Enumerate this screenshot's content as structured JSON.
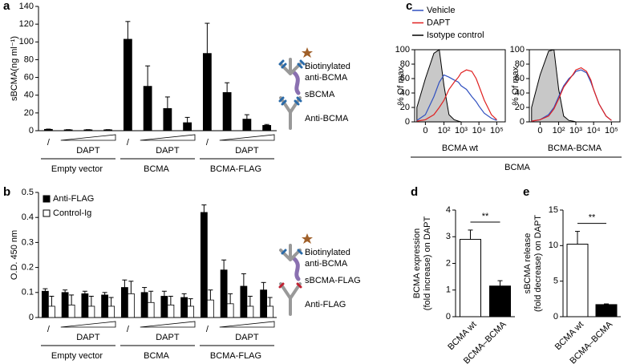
{
  "chart_data": [
    {
      "type": "bar",
      "panel_label": "a",
      "y_label": "sBCMA(ng ml⁻¹)",
      "ylim": [
        0,
        140
      ],
      "yticks": [
        0,
        20,
        40,
        60,
        80,
        100,
        120,
        140
      ],
      "groups": [
        {
          "name": "Empty vector",
          "control": "/",
          "treatment": "DAPT"
        },
        {
          "name": "BCMA",
          "control": "/",
          "treatment": "DAPT"
        },
        {
          "name": "BCMA-FLAG",
          "control": "/",
          "treatment": "DAPT"
        }
      ],
      "series": [
        {
          "color": "#000000",
          "values": [
            1.5,
            1,
            1,
            1,
            103,
            50,
            25,
            9,
            87,
            43,
            13,
            6
          ],
          "errors": [
            0.3,
            0.2,
            0.2,
            0.2,
            20,
            23,
            13,
            6,
            34,
            11,
            5,
            1
          ]
        }
      ]
    },
    {
      "type": "bar",
      "panel_label": "b",
      "y_label": "O.D. 450 nm",
      "legend": "upper left",
      "ylim": [
        0,
        0.5
      ],
      "yticks": [
        0,
        0.1,
        0.2,
        0.3,
        0.4,
        0.5
      ],
      "groups": [
        {
          "name": "Empty vector",
          "control": "/",
          "treatment": "DAPT"
        },
        {
          "name": "BCMA",
          "control": "/",
          "treatment": "DAPT"
        },
        {
          "name": "BCMA-FLAG",
          "control": "/",
          "treatment": "DAPT"
        }
      ],
      "series": [
        {
          "name": "Anti-FLAG",
          "color": "#000000",
          "values": [
            0.105,
            0.1,
            0.095,
            0.09,
            0.12,
            0.1,
            0.085,
            0.08,
            0.42,
            0.19,
            0.125,
            0.11
          ],
          "errors": [
            0.01,
            0.01,
            0.01,
            0.01,
            0.03,
            0.02,
            0.02,
            0.015,
            0.03,
            0.04,
            0.05,
            0.03
          ]
        },
        {
          "name": "Control-Ig",
          "color": "#ffffff",
          "values": [
            0.045,
            0.05,
            0.045,
            0.045,
            0.095,
            0.06,
            0.05,
            0.045,
            0.07,
            0.055,
            0.045,
            0.045
          ],
          "errors": [
            0.04,
            0.04,
            0.04,
            0.035,
            0.05,
            0.045,
            0.035,
            0.03,
            0.04,
            0.04,
            0.04,
            0.035
          ]
        }
      ]
    },
    {
      "type": "line",
      "panel_label": "c",
      "y_label": "% Of max",
      "x_label": "BCMA",
      "xscale": "symlog",
      "xlim": [
        -30,
        300000
      ],
      "xticks": [
        0,
        {
          "value": 100,
          "label": "10²"
        },
        {
          "value": 1000,
          "label": "10³"
        },
        {
          "value": 10000,
          "label": "10⁴"
        },
        {
          "value": 100000,
          "label": "10⁵"
        }
      ],
      "ylim": [
        0,
        100
      ],
      "yticks": [
        0,
        20,
        40,
        60,
        80,
        100
      ],
      "series": [
        {
          "name": "Vehicle",
          "color": "#3050c0"
        },
        {
          "name": "DAPT",
          "color": "#e02020"
        },
        {
          "name": "Isotype control",
          "color": "#000000",
          "fill": "#c8c8c8"
        }
      ],
      "x": [
        -20,
        0,
        20,
        50,
        100,
        200,
        400,
        700,
        1000,
        2000,
        4000,
        7000,
        10000,
        20000,
        50000,
        100000
      ],
      "subplots": [
        {
          "label": "BCMA wt",
          "series_values": [
            [
              2,
              10,
              35,
              55,
              65,
              62,
              58,
              55,
              50,
              45,
              35,
              28,
              22,
              12,
              5,
              2
            ],
            [
              1,
              3,
              10,
              20,
              30,
              45,
              55,
              62,
              68,
              72,
              70,
              60,
              50,
              30,
              10,
              3
            ],
            [
              20,
              60,
              95,
              100,
              50,
              10,
              3,
              1,
              0,
              0,
              0,
              0,
              0,
              0,
              0,
              0
            ]
          ]
        },
        {
          "label": "BCMA-BCMA",
          "series_values": [
            [
              1,
              3,
              10,
              20,
              35,
              50,
              60,
              65,
              70,
              72,
              68,
              55,
              45,
              25,
              8,
              2
            ],
            [
              1,
              3,
              8,
              18,
              32,
              48,
              58,
              66,
              72,
              75,
              70,
              58,
              45,
              25,
              8,
              2
            ],
            [
              20,
              65,
              98,
              100,
              45,
              8,
              2,
              1,
              0,
              0,
              0,
              0,
              0,
              0,
              0,
              0
            ]
          ]
        }
      ]
    },
    {
      "type": "bar",
      "panel_label": "d",
      "y_label": [
        "BCMA expression",
        "(fold increase) on DAPT"
      ],
      "categories": [
        "BCMA wt",
        "BCMA–BCMA"
      ],
      "values": [
        2.9,
        1.15
      ],
      "errors": [
        0.35,
        0.2
      ],
      "colors": [
        "#ffffff",
        "#000000"
      ],
      "ylim": [
        0,
        4
      ],
      "yticks": [
        0,
        1,
        2,
        3,
        4
      ],
      "annotation": "**"
    },
    {
      "type": "bar",
      "panel_label": "e",
      "y_label": [
        "sBCMA release",
        "(fold decrease) on DAPT"
      ],
      "categories": [
        "BCMA wt",
        "BCMA–BCMA"
      ],
      "values": [
        10.2,
        1.7
      ],
      "errors": [
        1.8,
        0.1
      ],
      "colors": [
        "#ffffff",
        "#000000"
      ],
      "ylim": [
        0,
        15
      ],
      "yticks": [
        0,
        5,
        10,
        15
      ],
      "annotation": "**"
    }
  ],
  "diagrams": [
    {
      "labels": [
        [
          "Biotinylated",
          "anti-BCMA"
        ],
        "sBCMA",
        "Anti-BCMA"
      ]
    },
    {
      "labels": [
        [
          "Biotinylated",
          "anti-BCMA"
        ],
        "sBCMA-FLAG",
        "Anti-FLAG"
      ]
    }
  ]
}
